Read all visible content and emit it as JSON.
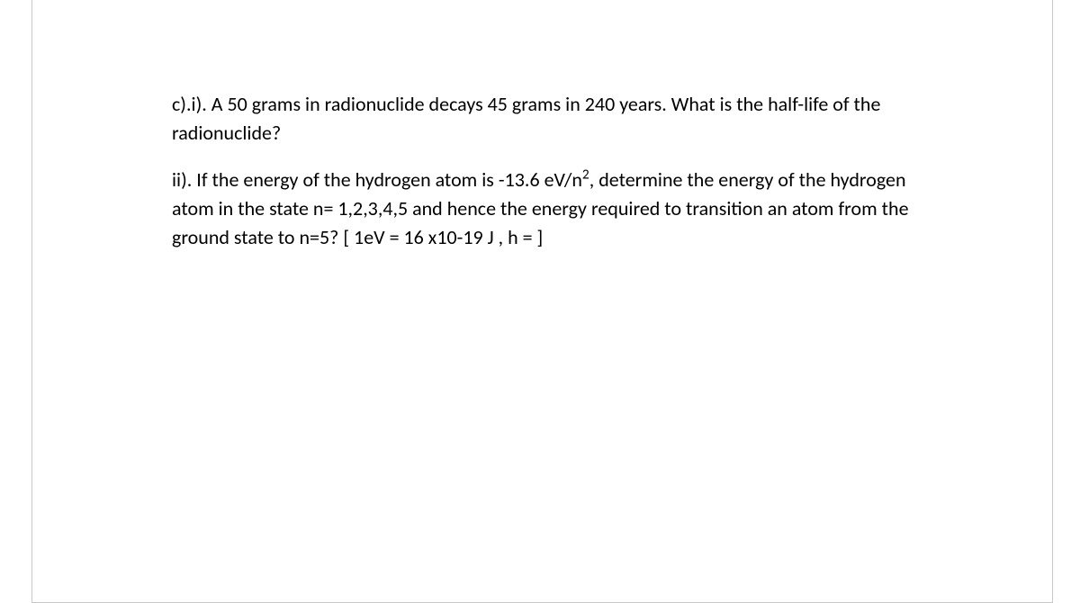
{
  "document": {
    "background_color": "#ffffff",
    "border_color": "#c8c8c8",
    "text_color": "#000000",
    "font_family": "Calibri",
    "font_size_pt": 16,
    "line_height": 1.45,
    "paragraphs": [
      {
        "label": "c).i).",
        "text_before": "c).i). A 50 grams in radionuclide decays 45 grams in 240 years. What is the half-life of the radionuclide?",
        "has_sup": false
      },
      {
        "label": "ii).",
        "text_before": "ii). If the  energy of the hydrogen atom is -13.6 eV/n",
        "sup": "2",
        "text_after": ", determine the energy of the hydrogen atom in the state n= 1,2,3,4,5 and hence the energy required to transition an atom from the ground state to n=5? [ 1eV = 16 x10-19 J , h = ]",
        "has_sup": true
      }
    ]
  }
}
